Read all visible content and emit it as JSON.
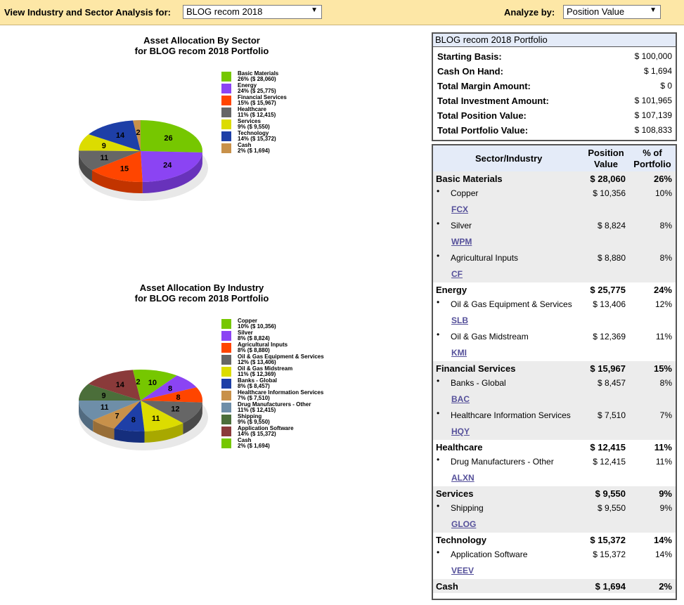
{
  "topbar": {
    "view_label": "View Industry and Sector Analysis for:",
    "portfolio_select": "BLOG recom 2018",
    "analyze_label": "Analyze by:",
    "analyze_select": "Position Value",
    "arrow": "▼"
  },
  "sector_chart": {
    "title1": "Asset Allocation By Sector",
    "title2": "for BLOG recom 2018 Portfolio",
    "slices": [
      {
        "name": "Basic Materials",
        "pct": 26,
        "value": "$ 28,060",
        "color": "#76c700",
        "side": "#5a9a00",
        "label": "26"
      },
      {
        "name": "Energy",
        "pct": 24,
        "value": "$ 25,775",
        "color": "#8b44f3",
        "side": "#6832bb",
        "label": "24"
      },
      {
        "name": "Financial Services",
        "pct": 15,
        "value": "$ 15,967",
        "color": "#ff4500",
        "side": "#c23400",
        "label": "15"
      },
      {
        "name": "Healthcare",
        "pct": 11,
        "value": "$ 12,415",
        "color": "#666666",
        "side": "#4a4a4a",
        "label": "11"
      },
      {
        "name": "Services",
        "pct": 9,
        "value": "$ 9,550",
        "color": "#dcdc00",
        "side": "#a8a800",
        "label": "9"
      },
      {
        "name": "Technology",
        "pct": 14,
        "value": "$ 15,372",
        "color": "#1e3fa7",
        "side": "#152e7c",
        "label": "14"
      },
      {
        "name": "Cash",
        "pct": 2,
        "value": "$ 1,694",
        "color": "#c8914a",
        "side": "#986e38",
        "label": "2"
      }
    ]
  },
  "industry_chart": {
    "title1": "Asset Allocation By Industry",
    "title2": "for BLOG recom 2018 Portfolio",
    "slices": [
      {
        "name": "Copper",
        "pct": 10,
        "value": "$ 10,356",
        "color": "#76c700",
        "side": "#5a9a00",
        "label": "10"
      },
      {
        "name": "Silver",
        "pct": 8,
        "value": "$ 8,824",
        "color": "#8b44f3",
        "side": "#6832bb",
        "label": "8"
      },
      {
        "name": "Agricultural Inputs",
        "pct": 8,
        "value": "$ 8,880",
        "color": "#ff4500",
        "side": "#c23400",
        "label": "8"
      },
      {
        "name": "Oil & Gas Equipment & Services",
        "pct": 12,
        "value": "$ 13,406",
        "color": "#666666",
        "side": "#4a4a4a",
        "label": "12"
      },
      {
        "name": "Oil & Gas Midstream",
        "pct": 11,
        "value": "$ 12,369",
        "color": "#dcdc00",
        "side": "#a8a800",
        "label": "11"
      },
      {
        "name": "Banks - Global",
        "pct": 8,
        "value": "$ 8,457",
        "color": "#1e3fa7",
        "side": "#152e7c",
        "label": "8"
      },
      {
        "name": "Healthcare Information Services",
        "pct": 7,
        "value": "$ 7,510",
        "color": "#c8914a",
        "side": "#986e38",
        "label": "7"
      },
      {
        "name": "Drug Manufacturers - Other",
        "pct": 11,
        "value": "$ 12,415",
        "color": "#6e8ea8",
        "side": "#526b80",
        "label": "11"
      },
      {
        "name": "Shipping",
        "pct": 9,
        "value": "$ 9,550",
        "color": "#4b6e3a",
        "side": "#37522a",
        "label": "9"
      },
      {
        "name": "Application Software",
        "pct": 14,
        "value": "$ 15,372",
        "color": "#8a3a3a",
        "side": "#662a2a",
        "label": "14"
      },
      {
        "name": "Cash",
        "pct": 2,
        "value": "$ 1,694",
        "color": "#76c700",
        "side": "#5a9a00",
        "label": "2"
      }
    ]
  },
  "summary": {
    "title": "BLOG recom 2018 Portfolio",
    "rows": [
      {
        "label": "Starting Basis:",
        "value": "$ 100,000"
      },
      {
        "label": "Cash On Hand:",
        "value": "$ 1,694"
      },
      {
        "label": "Total Margin Amount:",
        "value": "$ 0"
      },
      {
        "label": "Total Investment Amount:",
        "value": "$ 101,965"
      },
      {
        "label": "Total Position Value:",
        "value": "$ 107,139"
      },
      {
        "label": "Total Portfolio Value:",
        "value": "$ 108,833"
      }
    ]
  },
  "table": {
    "col_sector": "Sector/Industry",
    "col_value_1": "Position",
    "col_value_2": "Value",
    "col_pct_1": "% of",
    "col_pct_2": "Portfolio",
    "bullet": "•",
    "sectors": [
      {
        "name": "Basic Materials",
        "value": "$ 28,060",
        "pct": "26%",
        "industries": [
          {
            "name": "Copper",
            "value": "$ 10,356",
            "pct": "10%",
            "ticker": "FCX"
          },
          {
            "name": "Silver",
            "value": "$ 8,824",
            "pct": "8%",
            "ticker": "WPM"
          },
          {
            "name": "Agricultural Inputs",
            "value": "$ 8,880",
            "pct": "8%",
            "ticker": "CF"
          }
        ]
      },
      {
        "name": "Energy",
        "value": "$ 25,775",
        "pct": "24%",
        "industries": [
          {
            "name": "Oil & Gas Equipment & Services",
            "value": "$ 13,406",
            "pct": "12%",
            "ticker": "SLB"
          },
          {
            "name": "Oil & Gas Midstream",
            "value": "$ 12,369",
            "pct": "11%",
            "ticker": "KMI"
          }
        ]
      },
      {
        "name": "Financial Services",
        "value": "$ 15,967",
        "pct": "15%",
        "industries": [
          {
            "name": "Banks - Global",
            "value": "$ 8,457",
            "pct": "8%",
            "ticker": "BAC"
          },
          {
            "name": "Healthcare Information Services",
            "value": "$ 7,510",
            "pct": "7%",
            "ticker": "HQY"
          }
        ]
      },
      {
        "name": "Healthcare",
        "value": "$ 12,415",
        "pct": "11%",
        "industries": [
          {
            "name": "Drug Manufacturers - Other",
            "value": "$ 12,415",
            "pct": "11%",
            "ticker": "ALXN"
          }
        ]
      },
      {
        "name": "Services",
        "value": "$ 9,550",
        "pct": "9%",
        "industries": [
          {
            "name": "Shipping",
            "value": "$ 9,550",
            "pct": "9%",
            "ticker": "GLOG"
          }
        ]
      },
      {
        "name": "Technology",
        "value": "$ 15,372",
        "pct": "14%",
        "industries": [
          {
            "name": "Application Software",
            "value": "$ 15,372",
            "pct": "14%",
            "ticker": "VEEV"
          }
        ]
      },
      {
        "name": "Cash",
        "value": "$ 1,694",
        "pct": "2%",
        "industries": []
      }
    ]
  }
}
